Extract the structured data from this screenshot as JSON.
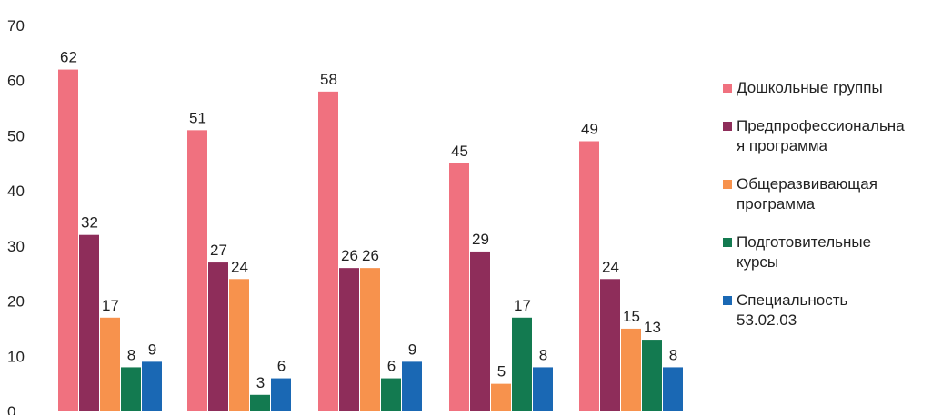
{
  "chart_data": {
    "type": "bar",
    "categories": [
      "",
      "",
      "",
      "",
      ""
    ],
    "ylim": [
      0,
      70
    ],
    "yticks": [
      0,
      10,
      20,
      30,
      40,
      50,
      60,
      70
    ],
    "grid": false,
    "legend_position": "right",
    "series": [
      {
        "name": "Дошкольные группы",
        "color": "#f0717f",
        "values": [
          62,
          51,
          58,
          45,
          49
        ]
      },
      {
        "name": "Предпрофессиональна\nя программа",
        "color": "#8e2d5a",
        "values": [
          32,
          27,
          26,
          29,
          24
        ]
      },
      {
        "name": "Общеразвивающая\nпрограмма",
        "color": "#f7924d",
        "values": [
          17,
          24,
          26,
          5,
          15
        ]
      },
      {
        "name": "Подготовительные\nкурсы",
        "color": "#137a50",
        "values": [
          8,
          3,
          6,
          17,
          13
        ]
      },
      {
        "name": "Специальность\n53.02.03",
        "color": "#1a68b4",
        "values": [
          9,
          6,
          9,
          8,
          8
        ]
      }
    ]
  }
}
